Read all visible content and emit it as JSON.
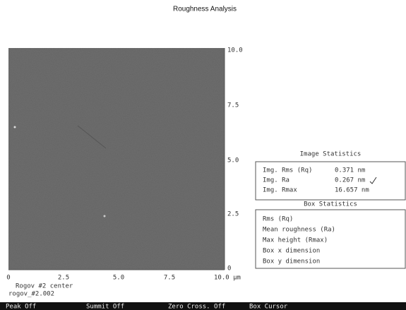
{
  "header": {
    "title": "Roughness Analysis"
  },
  "image": {
    "y_ticks": [
      "10.0",
      "7.5",
      "5.0",
      "2.5",
      "0"
    ],
    "x_ticks": [
      "0",
      "2.5",
      "5.0",
      "7.5",
      "10.0 µm"
    ],
    "caption": [
      "Rogov #2 center",
      "rogov_#2.002"
    ]
  },
  "image_statistics": {
    "title": "Image Statistics",
    "rows": [
      [
        "Img. Rms (Rq)",
        "0.371 nm"
      ],
      [
        "Img. Ra",
        "0.267 nm"
      ],
      [
        "Img. Rmax",
        "16.657 nm"
      ]
    ]
  },
  "box_statistics": {
    "title": "Box Statistics",
    "rows": [
      "Rms (Rq)",
      "Mean roughness (Ra)",
      "Max height (Rmax)",
      "Box x dimension",
      "Box y dimension"
    ]
  },
  "status_bar": [
    "Peak Off",
    "Summit Off",
    "Zero Cross. Off",
    "Box Cursor"
  ]
}
